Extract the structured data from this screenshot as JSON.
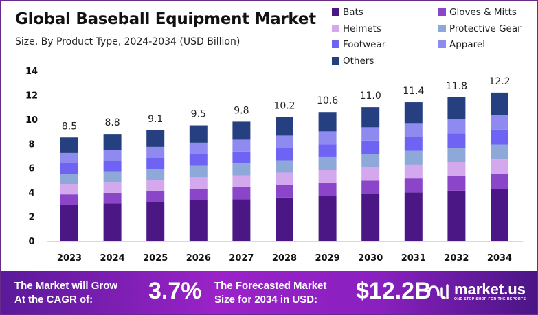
{
  "chart_data": {
    "type": "bar",
    "stacked": true,
    "title": "Global Baseball Equipment Market",
    "subtitle": "Size, By Product Type, 2024-2034 (USD Billion)",
    "categories": [
      "2023",
      "2024",
      "2025",
      "2026",
      "2027",
      "2028",
      "2029",
      "2030",
      "2031",
      "2032",
      "2034"
    ],
    "totals": [
      8.5,
      8.8,
      9.1,
      9.5,
      9.8,
      10.2,
      10.6,
      11.0,
      11.4,
      11.8,
      12.2
    ],
    "total_labels": [
      "8.5",
      "8.8",
      "9.1",
      "9.5",
      "9.8",
      "10.2",
      "10.6",
      "11.0",
      "11.4",
      "11.8",
      "12.2"
    ],
    "series": [
      {
        "name": "Bats",
        "color": "#4B1785",
        "values": [
          2.98,
          3.08,
          3.19,
          3.33,
          3.43,
          3.57,
          3.71,
          3.85,
          3.99,
          4.13,
          4.27
        ]
      },
      {
        "name": "Gloves & Mitts",
        "color": "#8A45C8",
        "values": [
          0.85,
          0.88,
          0.91,
          0.95,
          0.98,
          1.02,
          1.06,
          1.1,
          1.14,
          1.18,
          1.22
        ]
      },
      {
        "name": "Helmets",
        "color": "#D4A8EC",
        "values": [
          0.85,
          0.88,
          0.91,
          0.95,
          0.98,
          1.02,
          1.06,
          1.1,
          1.14,
          1.18,
          1.22
        ]
      },
      {
        "name": "Protective Gear",
        "color": "#8FA8DA",
        "values": [
          0.85,
          0.88,
          0.91,
          0.95,
          0.98,
          1.02,
          1.06,
          1.1,
          1.14,
          1.18,
          1.22
        ]
      },
      {
        "name": "Footwear",
        "color": "#6E63F2",
        "values": [
          0.85,
          0.88,
          0.91,
          0.95,
          0.98,
          1.02,
          1.06,
          1.1,
          1.14,
          1.18,
          1.22
        ]
      },
      {
        "name": "Apparel",
        "color": "#8E8AF0",
        "values": [
          0.85,
          0.88,
          0.91,
          0.95,
          0.98,
          1.02,
          1.06,
          1.1,
          1.14,
          1.18,
          1.22
        ]
      },
      {
        "name": "Others",
        "color": "#263F80",
        "values": [
          1.28,
          1.32,
          1.37,
          1.43,
          1.47,
          1.53,
          1.59,
          1.65,
          1.71,
          1.77,
          1.83
        ]
      }
    ],
    "ylim": [
      0,
      14
    ],
    "yticks": [
      "0",
      "2",
      "4",
      "6",
      "8",
      "10",
      "12",
      "14"
    ],
    "grid": false,
    "legend_placement": "top-right"
  },
  "footer": {
    "cagr_text_1": "The Market will Grow",
    "cagr_text_2": "At the CAGR of:",
    "cagr_value": "3.7%",
    "forecast_text_1": "The Forecasted Market",
    "forecast_text_2": "Size for 2034 in USD:",
    "forecast_value": "$12.2B",
    "brand": "market.us",
    "brand_tagline": "ONE STOP SHOP FOR THE REPORTS"
  }
}
